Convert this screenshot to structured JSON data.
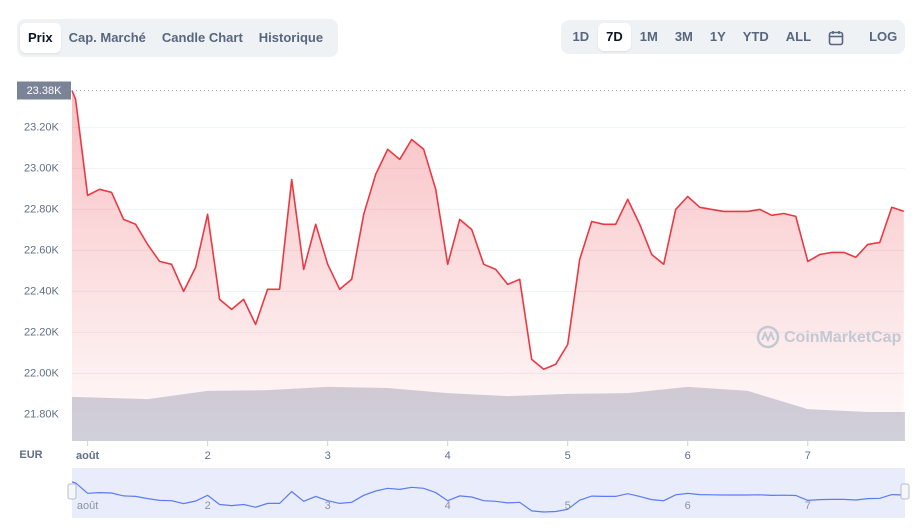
{
  "toolbar": {
    "tabs": [
      "Prix",
      "Cap. Marché",
      "Candle Chart",
      "Historique"
    ],
    "active_tab": 0,
    "ranges": [
      "1D",
      "7D",
      "1M",
      "3M",
      "1Y",
      "YTD",
      "ALL"
    ],
    "active_range": 1,
    "log_button": "LOG"
  },
  "chart_data": {
    "type": "line",
    "color": "#ea3943",
    "currency_label": "EUR",
    "watermark": "CoinMarketCap",
    "x": [
      0.87,
      0.9,
      1.0,
      1.1,
      1.2,
      1.3,
      1.4,
      1.5,
      1.6,
      1.7,
      1.8,
      1.9,
      2.0,
      2.1,
      2.2,
      2.3,
      2.4,
      2.5,
      2.6,
      2.7,
      2.8,
      2.9,
      3.0,
      3.1,
      3.2,
      3.3,
      3.4,
      3.5,
      3.6,
      3.7,
      3.8,
      3.9,
      4.0,
      4.1,
      4.2,
      4.3,
      4.4,
      4.5,
      4.6,
      4.7,
      4.8,
      4.9,
      5.0,
      5.1,
      5.2,
      5.3,
      5.4,
      5.5,
      5.6,
      5.7,
      5.8,
      5.9,
      6.0,
      6.1,
      6.2,
      6.3,
      6.4,
      6.5,
      6.6,
      6.7,
      6.8,
      6.9,
      7.0,
      7.1,
      7.2,
      7.3,
      7.4,
      7.5,
      7.6,
      7.7,
      7.8
    ],
    "values": [
      23380,
      23337,
      22868,
      22898,
      22883,
      22751,
      22727,
      22629,
      22546,
      22532,
      22400,
      22517,
      22776,
      22361,
      22312,
      22361,
      22239,
      22410,
      22410,
      22946,
      22507,
      22727,
      22532,
      22410,
      22459,
      22776,
      22971,
      23093,
      23044,
      23141,
      23093,
      22898,
      22532,
      22751,
      22702,
      22532,
      22507,
      22434,
      22459,
      22068,
      22020,
      22044,
      22141,
      22556,
      22741,
      22727,
      22727,
      22849,
      22727,
      22580,
      22532,
      22800,
      22863,
      22810,
      22800,
      22790,
      22790,
      22790,
      22800,
      22771,
      22780,
      22766,
      22546,
      22580,
      22590,
      22590,
      22566,
      22629,
      22639,
      22810,
      22790
    ],
    "current_price": {
      "value": 23380,
      "label": "23.38K"
    },
    "xlim": [
      0.87,
      7.81
    ],
    "xticks": [
      {
        "value": 1,
        "label": "août"
      },
      2,
      3,
      4,
      5,
      6,
      7
    ],
    "ylim": [
      21670,
      23480
    ],
    "yticks": [
      {
        "value": 21800,
        "label": "21.80K"
      },
      {
        "value": 22000,
        "label": "22.00K"
      },
      {
        "value": 22200,
        "label": "22.20K"
      },
      {
        "value": 22400,
        "label": "22.40K"
      },
      {
        "value": 22600,
        "label": "22.60K"
      },
      {
        "value": 22800,
        "label": "22.80K"
      },
      {
        "value": 23000,
        "label": "23.00K"
      },
      {
        "value": 23200,
        "label": "23.20K"
      }
    ],
    "grid": true,
    "y2lim": [
      0,
      100
    ],
    "volume": {
      "color": "#cfd3de",
      "axis": "y2",
      "x": [
        0.87,
        1.5,
        2.0,
        2.5,
        3.0,
        3.5,
        4.0,
        4.5,
        5.0,
        5.5,
        6.0,
        6.5,
        7.0,
        7.5,
        7.81
      ],
      "values": [
        11.9,
        11.3,
        13.5,
        13.7,
        14.6,
        14.3,
        12.9,
        12.1,
        12.7,
        12.9,
        14.6,
        13.5,
        8.6,
        7.8,
        7.8
      ]
    }
  }
}
